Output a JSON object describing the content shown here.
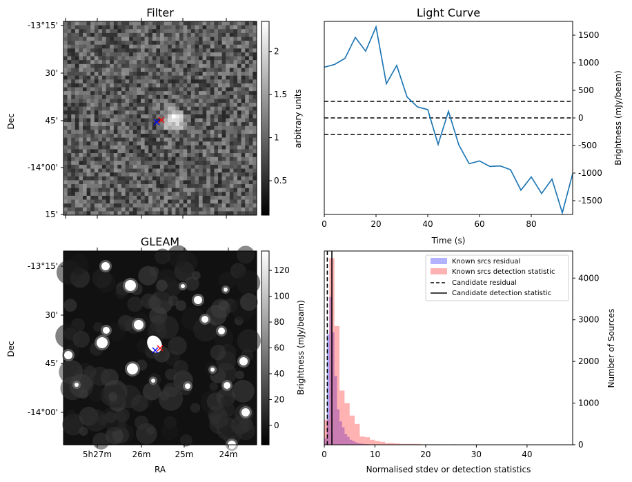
{
  "chart_data": [
    {
      "type": "heatmap",
      "title": "Filter",
      "xlabel": "",
      "ylabel": "Dec",
      "ytick_labels": [
        "-13°15'",
        "30'",
        "45'",
        "-14°00'",
        "15'"
      ],
      "colorbar": {
        "label": "arbitrary units",
        "ticks": [
          0.5,
          1.0,
          1.5,
          2.0
        ],
        "range": [
          0.1,
          2.35
        ]
      },
      "markers": [
        {
          "color": "#0000ff",
          "symbol": "x"
        },
        {
          "color": "#ff0000",
          "symbol": "x"
        }
      ]
    },
    {
      "type": "line",
      "title": "Light Curve",
      "xlabel": "Time (s)",
      "ylabel": "Brightness (mJy/beam)",
      "xlim": [
        0,
        96
      ],
      "ylim": [
        -1750,
        1750
      ],
      "xticks": [
        0,
        20,
        40,
        60,
        80
      ],
      "yticks": [
        -1500,
        -1000,
        -500,
        0,
        500,
        1000,
        1500
      ],
      "y_axis_side": "right",
      "series": [
        {
          "color": "#1f77b4",
          "x": [
            0,
            4,
            8,
            12,
            16,
            20,
            24,
            28,
            32,
            36,
            40,
            44,
            48,
            52,
            56,
            60,
            64,
            68,
            72,
            76,
            80,
            84,
            88,
            92,
            96
          ],
          "y": [
            920,
            970,
            1080,
            1460,
            1210,
            1650,
            620,
            950,
            380,
            200,
            150,
            -480,
            120,
            -490,
            -830,
            -780,
            -880,
            -870,
            -940,
            -1310,
            -1070,
            -1370,
            -1110,
            -1720,
            -1010
          ]
        }
      ],
      "hlines": [
        {
          "y": 300,
          "style": "dashed"
        },
        {
          "y": 0,
          "style": "dashed"
        },
        {
          "y": -300,
          "style": "dashed"
        }
      ]
    },
    {
      "type": "heatmap",
      "title": "GLEAM",
      "xlabel": "RA",
      "ylabel": "Dec",
      "xtick_labels": [
        "5h27m",
        "26m",
        "25m",
        "24m"
      ],
      "ytick_labels": [
        "-13°15'",
        "30'",
        "45'",
        "-14°00'"
      ],
      "colorbar": {
        "label": "Brightness (mJy/beam)",
        "ticks": [
          0,
          20,
          40,
          60,
          80,
          100,
          120
        ],
        "range": [
          -15,
          135
        ]
      },
      "markers": [
        {
          "color": "#0000ff",
          "symbol": "x"
        },
        {
          "color": "#ff0000",
          "symbol": "x"
        }
      ]
    },
    {
      "type": "bar",
      "title": "",
      "xlabel": "Normalised stdev or detection statistics",
      "ylabel": "Number of Sources",
      "xlim": [
        0,
        49
      ],
      "ylim": [
        0,
        4650
      ],
      "xticks": [
        0,
        10,
        20,
        30,
        40
      ],
      "yticks": [
        0,
        1000,
        2000,
        3000,
        4000
      ],
      "y_axis_side": "right",
      "legend_position": "top-right",
      "bin_width": 1,
      "series": [
        {
          "name": "Known srcs residual",
          "color": "#0000ff",
          "alpha": 0.3,
          "bin_starts": [
            0,
            0.5,
            1,
            1.5,
            2,
            2.5,
            3,
            3.5,
            4,
            4.5,
            5,
            5.5,
            6,
            6.5,
            7,
            7.5,
            8,
            8.5,
            9
          ],
          "bin_width": 0.5,
          "counts": [
            150,
            2650,
            3550,
            2700,
            1650,
            850,
            560,
            420,
            260,
            190,
            120,
            90,
            60,
            40,
            30,
            20,
            15,
            10,
            5
          ]
        },
        {
          "name": "Known srcs detection statistic",
          "color": "#ff0000",
          "alpha": 0.3,
          "bin_starts": [
            0,
            1,
            2,
            3,
            4,
            5,
            6,
            7,
            8,
            9,
            10,
            11,
            12,
            13,
            14,
            15,
            16,
            17,
            18,
            19,
            20,
            21,
            22,
            23,
            24,
            25,
            26,
            27,
            28,
            29,
            30,
            31,
            32,
            33,
            34,
            35,
            36,
            37,
            38,
            39,
            40,
            41,
            42,
            43,
            44,
            45,
            46,
            47
          ],
          "counts": [
            600,
            4480,
            2850,
            1300,
            1000,
            700,
            500,
            200,
            180,
            120,
            90,
            70,
            40,
            40,
            30,
            20,
            20,
            20,
            20,
            10,
            10,
            10,
            10,
            8,
            8,
            10,
            5,
            5,
            5,
            5,
            5,
            5,
            5,
            3,
            5,
            3,
            3,
            3,
            3,
            3,
            3,
            3,
            3,
            3,
            3,
            3,
            3,
            3
          ]
        }
      ],
      "vlines": [
        {
          "name": "Candidate residual",
          "x": 0.6,
          "style": "dashed"
        },
        {
          "name": "Candidate detection statistic",
          "x": 1.5,
          "style": "solid"
        }
      ]
    }
  ]
}
